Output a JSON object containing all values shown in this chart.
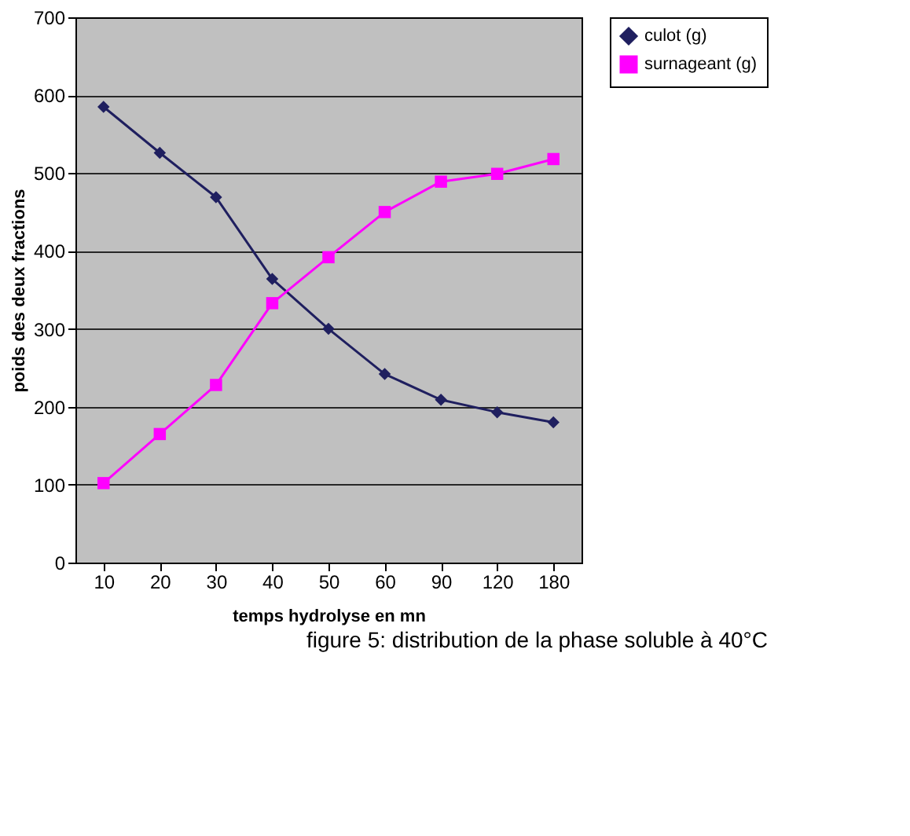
{
  "chart_data": {
    "type": "line",
    "categories": [
      "10",
      "20",
      "30",
      "40",
      "50",
      "60",
      "90",
      "120",
      "180"
    ],
    "xlabel": "temps hydrolyse en mn",
    "ylabel": "poids des deux fractions",
    "series": [
      {
        "name": "culot (g)",
        "color": "#1f1f5f",
        "marker": "diamond",
        "values": [
          585,
          526,
          469,
          364,
          300,
          242,
          209,
          193,
          180
        ]
      },
      {
        "name": "surnageant (g)",
        "color": "#ff00ff",
        "marker": "square",
        "values": [
          102,
          165,
          228,
          333,
          392,
          450,
          489,
          499,
          518
        ]
      }
    ],
    "ylim": [
      0,
      700
    ],
    "yticks": [
      0,
      100,
      200,
      300,
      400,
      500,
      600,
      700
    ],
    "grid": "y",
    "legend": "right",
    "line_style": "solid",
    "annotations": [
      "figure 5: distribution de la phase soluble à 40°C"
    ]
  }
}
